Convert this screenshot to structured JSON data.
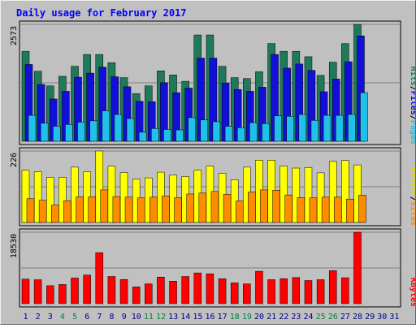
{
  "chart_data": {
    "type": "bar",
    "title": "Daily usage for February 2017",
    "days": [
      "1",
      "2",
      "3",
      "4",
      "5",
      "6",
      "7",
      "8",
      "9",
      "10",
      "11",
      "12",
      "13",
      "14",
      "15",
      "16",
      "17",
      "18",
      "19",
      "20",
      "21",
      "22",
      "23",
      "24",
      "25",
      "26",
      "27",
      "28",
      "29",
      "30",
      "31"
    ],
    "weekend_days": [
      "4",
      "5",
      "11",
      "12",
      "18",
      "19",
      "25",
      "26"
    ],
    "panels": [
      {
        "id": "top",
        "max_label": "2573",
        "ymax": 2573,
        "legend": [
          "Pages",
          "/",
          "Files",
          "/",
          "Hits"
        ],
        "series": [
          {
            "name": "Hits",
            "color": "#1f7a5a",
            "values": [
              1980,
              1540,
              1220,
              1430,
              1650,
              1910,
              1910,
              1730,
              1400,
              1050,
              1220,
              1550,
              1460,
              1320,
              2340,
              2340,
              1650,
              1400,
              1380,
              1530,
              2150,
              1980,
              1980,
              1860,
              1450,
              1740,
              2150,
              2573,
              0,
              0,
              0
            ]
          },
          {
            "name": "Files",
            "color": "#1010d8",
            "values": [
              1690,
              1250,
              930,
              1100,
              1410,
              1500,
              1630,
              1420,
              1200,
              880,
              870,
              1290,
              1070,
              1170,
              1830,
              1830,
              1280,
              1140,
              1100,
              1190,
              1910,
              1610,
              1700,
              1560,
              1090,
              1370,
              1750,
              2320,
              0,
              0,
              0
            ]
          },
          {
            "name": "Pages",
            "color": "#22bfe8",
            "values": [
              570,
              400,
              330,
              370,
              420,
              450,
              670,
              590,
              500,
              200,
              280,
              260,
              250,
              520,
              470,
              430,
              330,
              300,
              410,
              390,
              560,
              550,
              590,
              460,
              570,
              570,
              590,
              1070,
              0,
              0,
              0
            ]
          }
        ]
      },
      {
        "id": "middle",
        "max_label": "226",
        "ymax": 226,
        "legend": [
          "Sites",
          "/",
          "Visits"
        ],
        "series": [
          {
            "name": "Visits",
            "color": "#ffff00",
            "values": [
              165,
              160,
              143,
              143,
              175,
              160,
              226,
              178,
              158,
              137,
              141,
              159,
              150,
              145,
              165,
              178,
              156,
              135,
              175,
              197,
              197,
              178,
              172,
              174,
              157,
              193,
              196,
              182,
              0,
              0,
              0
            ]
          },
          {
            "name": "Sites",
            "color": "#ff8c00",
            "values": [
              75,
              70,
              55,
              69,
              81,
              81,
              103,
              82,
              80,
              78,
              80,
              84,
              78,
              90,
              93,
              98,
              89,
              68,
              96,
              103,
              102,
              87,
              79,
              78,
              80,
              80,
              74,
              86,
              0,
              0,
              0
            ]
          }
        ]
      },
      {
        "id": "bottom",
        "max_label": "18530",
        "ymax": 18530,
        "legend": [
          "KBytes"
        ],
        "series": [
          {
            "name": "KBytes",
            "color": "#ff0000",
            "values": [
              6350,
              6200,
              4660,
              4970,
              6640,
              7420,
              13230,
              7050,
              6270,
              4340,
              5130,
              6900,
              5830,
              7050,
              7970,
              7740,
              6450,
              5390,
              5130,
              8400,
              6220,
              6470,
              6780,
              6000,
              6220,
              8560,
              6720,
              18530,
              0,
              0,
              0
            ]
          }
        ]
      }
    ]
  },
  "colors": {
    "background": "#c0c0c0",
    "plot_area": "#c0c0c0",
    "title_color": "#0000ff",
    "weekend_label": "#008040",
    "weekday_label": "#000080",
    "legend_pages": "#22bfe8",
    "legend_files": "#1010d8",
    "legend_hits": "#1f7a5a",
    "legend_sites": "#ff8c00",
    "legend_visits": "#e0e000",
    "legend_kbytes": "#ff0000"
  }
}
